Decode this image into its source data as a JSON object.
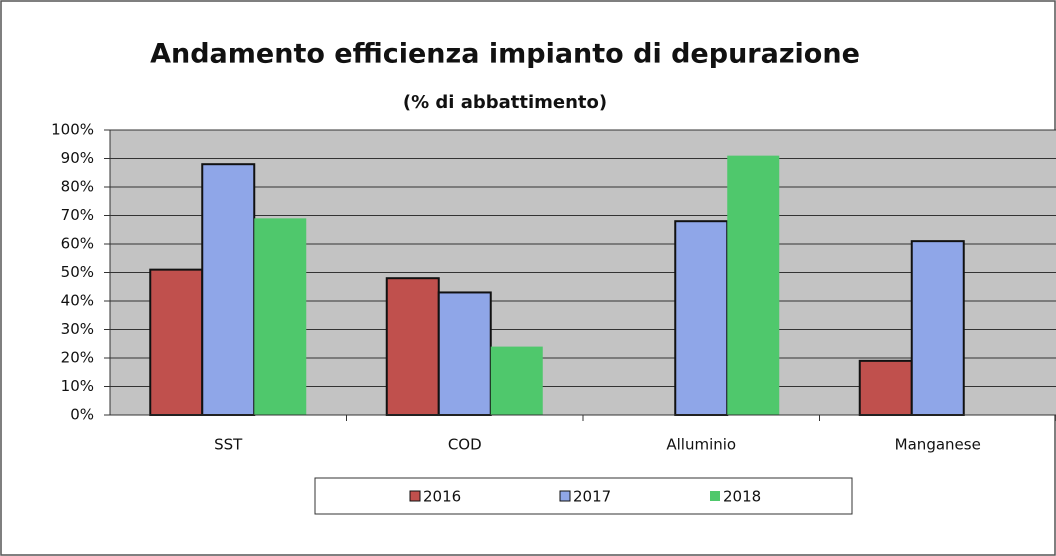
{
  "chart_data": {
    "type": "bar",
    "title": "Andamento efficienza impianto di depurazione",
    "subtitle": "(% di abbattimento)",
    "categories": [
      "SST",
      "COD",
      "Alluminio",
      "Manganese"
    ],
    "series": [
      {
        "name": "2016",
        "color": "#c0504d",
        "values": [
          51,
          48,
          0,
          19
        ]
      },
      {
        "name": "2017",
        "color": "#8fa6e8",
        "values": [
          88,
          43,
          68,
          61
        ]
      },
      {
        "name": "2018",
        "color": "#4fc86c",
        "values": [
          69,
          24,
          91,
          0
        ]
      }
    ],
    "ylim": [
      0,
      100
    ],
    "yticks": [
      {
        "value": 0,
        "label": "0%"
      },
      {
        "value": 10,
        "label": "10%"
      },
      {
        "value": 20,
        "label": "20%"
      },
      {
        "value": 30,
        "label": "30%"
      },
      {
        "value": 40,
        "label": "40%"
      },
      {
        "value": 50,
        "label": "50%"
      },
      {
        "value": 60,
        "label": "60%"
      },
      {
        "value": 70,
        "label": "70%"
      },
      {
        "value": 80,
        "label": "80%"
      },
      {
        "value": 90,
        "label": "90%"
      },
      {
        "value": 100,
        "label": "100%"
      }
    ],
    "grid": true,
    "legend": "bottom"
  }
}
